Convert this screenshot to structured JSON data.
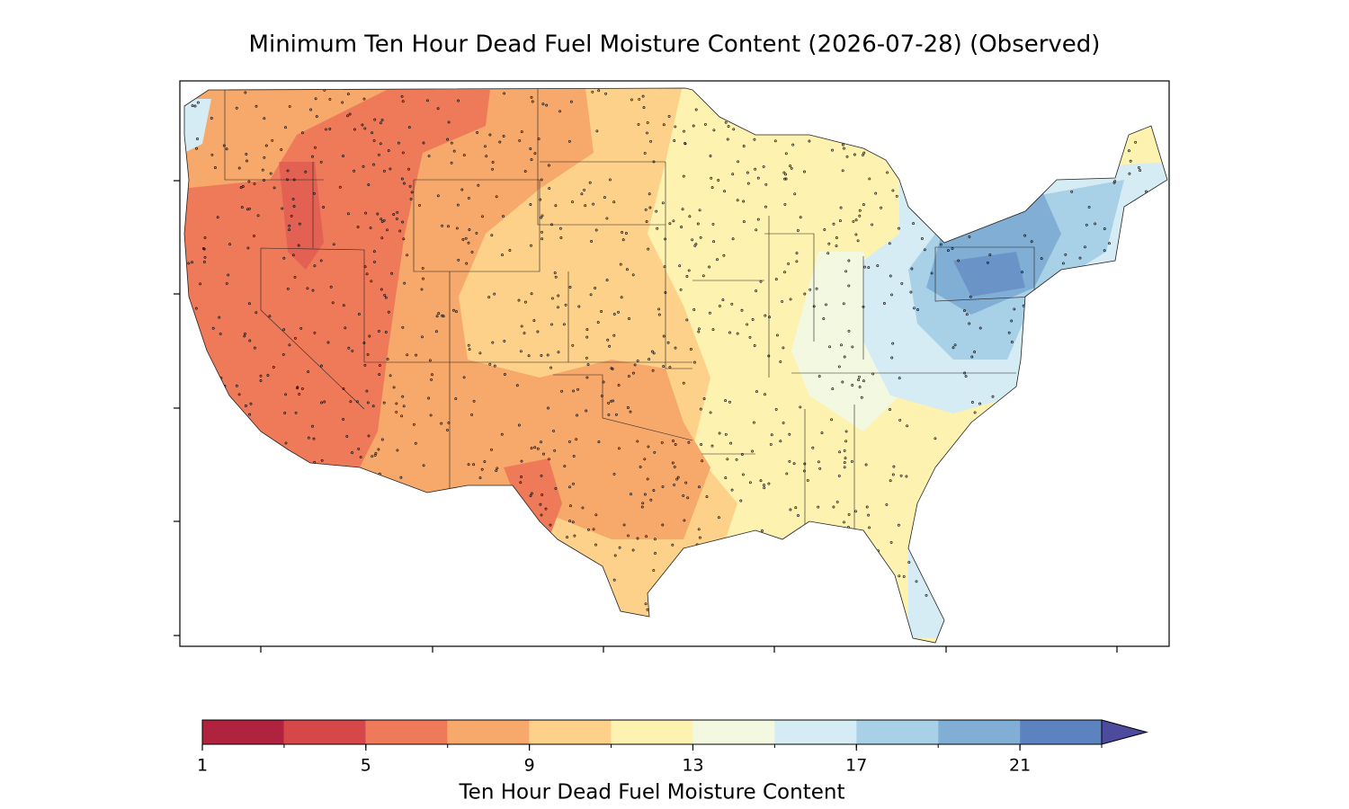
{
  "title": "Minimum Ten Hour Dead Fuel Moisture Content (2026-07-28) (Observed)",
  "colorbar": {
    "label": "Ten Hour Dead Fuel Moisture Content",
    "levels": [
      1,
      3,
      5,
      7,
      9,
      11,
      13,
      15,
      17,
      19,
      21,
      23
    ],
    "colors": [
      "#b0233f",
      "#d6474a",
      "#ef7a5a",
      "#f7a86b",
      "#fdd18a",
      "#fef2b0",
      "#f3f8e1",
      "#d5ecf4",
      "#a8d0e6",
      "#80aed4",
      "#5c82c0"
    ],
    "extend_color": "#4d4b9e",
    "ticks": [
      1,
      5,
      9,
      13,
      17,
      21
    ]
  }
}
